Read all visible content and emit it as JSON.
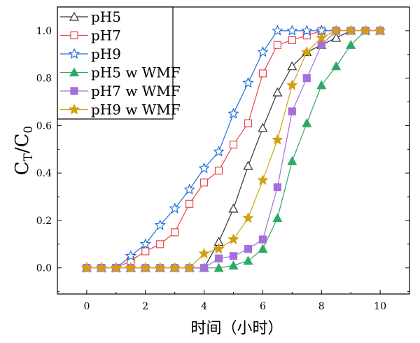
{
  "chart_data": {
    "type": "line",
    "title": "",
    "xlabel": "时间（小时）",
    "ylabel_main": "C",
    "ylabel_sub1": "T",
    "ylabel_mid": "/C",
    "ylabel_sub2": "0",
    "xlim": [
      -1,
      11
    ],
    "ylim": [
      -0.11,
      1.1
    ],
    "xticks": [
      0,
      2,
      4,
      6,
      8,
      10
    ],
    "xtick_labels": [
      "0",
      "2",
      "4",
      "6",
      "8",
      "10"
    ],
    "yticks": [
      0,
      0.2,
      0.4,
      0.6,
      0.8,
      1.0
    ],
    "ytick_labels": [
      "0.0",
      "0.2",
      "0.4",
      "0.6",
      "0.8",
      "1.0"
    ],
    "grid": false,
    "legend_placement": "top-left",
    "x": [
      0,
      0.5,
      1,
      1.5,
      2,
      2.5,
      3,
      3.5,
      4,
      4.5,
      5,
      5.5,
      6,
      6.5,
      7,
      7.5,
      8,
      8.5,
      9,
      9.5,
      10
    ],
    "series": [
      {
        "name": "pH5",
        "color": "#333333",
        "marker": "triangle-open",
        "values": [
          0,
          0,
          0,
          0,
          0,
          0,
          0,
          0,
          0,
          0.11,
          0.25,
          0.43,
          0.59,
          0.74,
          0.85,
          0.91,
          0.94,
          0.97,
          1.0,
          1.0,
          1.0
        ]
      },
      {
        "name": "pH7",
        "color": "#e8444a",
        "marker": "square-open",
        "values": [
          0,
          0,
          0,
          0.03,
          0.07,
          0.1,
          0.15,
          0.27,
          0.36,
          0.41,
          0.52,
          0.61,
          0.82,
          0.94,
          0.96,
          0.98,
          1.0,
          1.0,
          1.0,
          1.0,
          1.0
        ]
      },
      {
        "name": "pH9",
        "color": "#1f6fd8",
        "marker": "star-open",
        "values": [
          0,
          0,
          0,
          0.05,
          0.1,
          0.18,
          0.25,
          0.33,
          0.42,
          0.49,
          0.65,
          0.78,
          0.91,
          1.0,
          1.0,
          1.0,
          1.0,
          1.0,
          1.0,
          1.0,
          1.0
        ]
      },
      {
        "name": "pH5 w WMF",
        "color": "#2fa866",
        "marker": "triangle-filled",
        "values": [
          0,
          0,
          0,
          0,
          0,
          0,
          0,
          0,
          0,
          0,
          0.01,
          0.03,
          0.08,
          0.21,
          0.45,
          0.61,
          0.77,
          0.85,
          0.94,
          1.0,
          1.0
        ]
      },
      {
        "name": "pH7 w WMF",
        "color": "#a56fdc",
        "marker": "square-filled",
        "values": [
          0,
          0,
          0,
          0,
          0,
          0,
          0,
          0,
          0,
          0.04,
          0.05,
          0.08,
          0.12,
          0.34,
          0.66,
          0.8,
          0.94,
          1.0,
          1.0,
          1.0,
          1.0
        ]
      },
      {
        "name": "pH9 w WMF",
        "color": "#d4a012",
        "marker": "star-filled",
        "values": [
          0,
          0,
          0,
          0,
          0,
          0,
          0,
          0,
          0.06,
          0.08,
          0.12,
          0.21,
          0.37,
          0.54,
          0.77,
          0.91,
          0.97,
          1.0,
          1.0,
          1.0,
          1.0
        ]
      }
    ]
  }
}
